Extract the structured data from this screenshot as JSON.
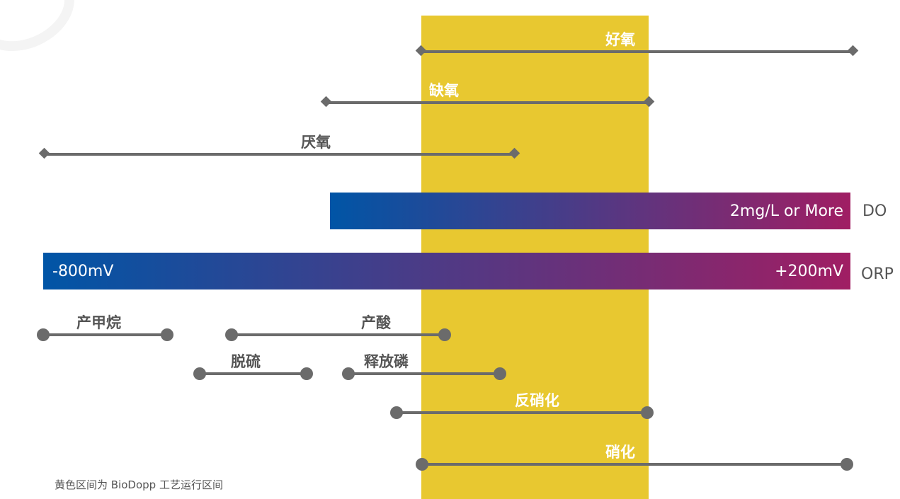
{
  "band": {
    "color": "#e8c830"
  },
  "ranges": {
    "aerobic": "好氧",
    "anoxic": "缺氧",
    "anaerobic": "厌氧"
  },
  "bars": {
    "do": {
      "right_label": "2mg/L or More",
      "tag": "DO"
    },
    "orp": {
      "left_label": "-800mV",
      "right_label": "+200mV",
      "tag": "ORP"
    },
    "gradient_start": "#0055a6",
    "gradient_end": "#a01e63"
  },
  "processes": {
    "methane": "产甲烷",
    "acid": "产酸",
    "desulfurization": "脱硫",
    "phosphorus_release": "释放磷",
    "denitrification": "反硝化",
    "nitrification": "硝化"
  },
  "footnote": "黄色区间为 BioDopp 工艺运行区间"
}
